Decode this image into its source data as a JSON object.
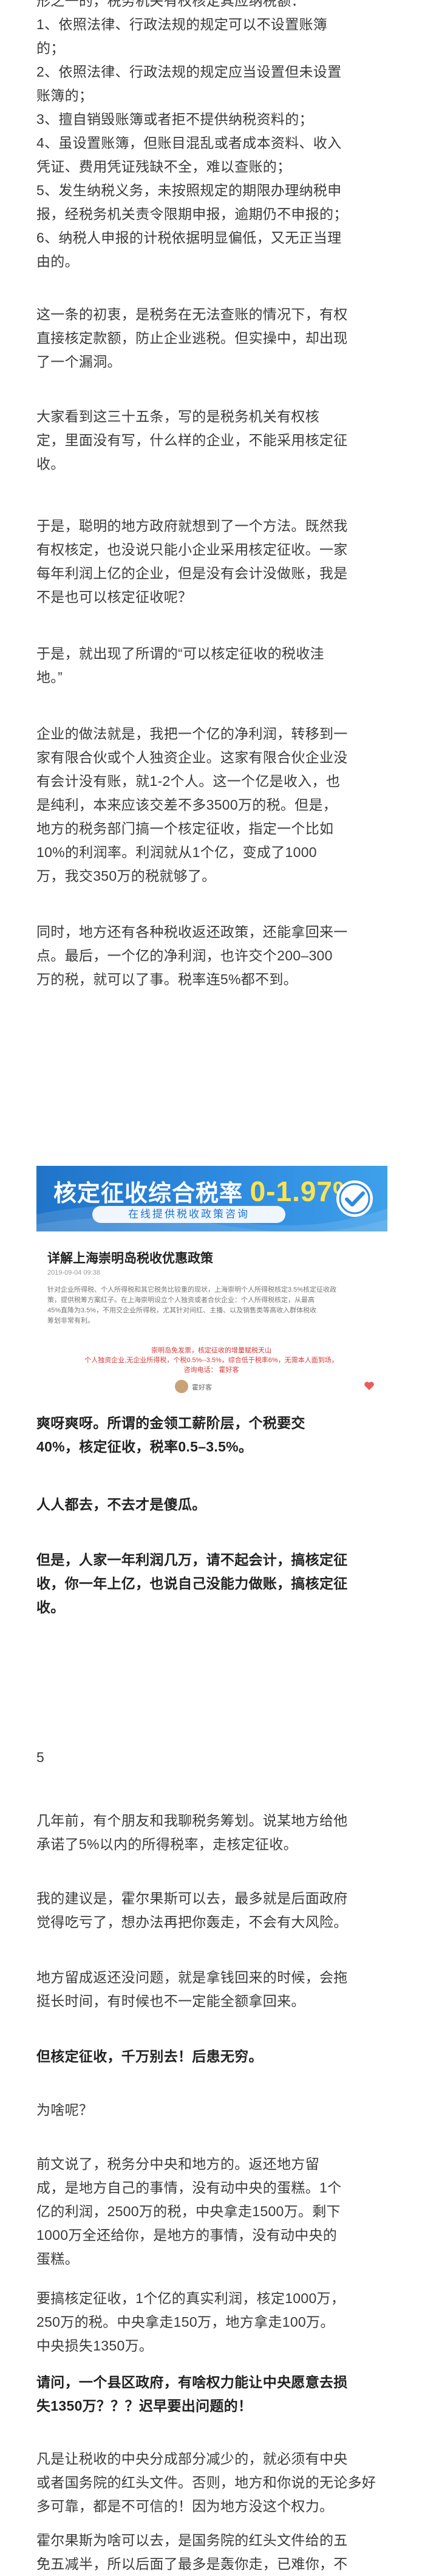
{
  "paragraphs": [
    {
      "id": "p-list",
      "bold": false,
      "lines": [
        "形之一的，税务机关有权核定其应纳税额：",
        "1、依照法律、行政法规的规定可以不设置账簿",
        "的；",
        "2、依照法律、行政法规的规定应当设置但未设置",
        "账簿的；",
        "3、擅自销毁账簿或者拒不提供纳税资料的；",
        "4、虽设置账簿，但账目混乱或者成本资料、收入",
        "凭证、费用凭证残缺不全，难以查账的；",
        "5、发生纳税义务，未按照规定的期限办理纳税申",
        "报，经税务机关责令限期申报，逾期仍不申报的；",
        "6、纳税人申报的计税依据明显偏低，又无正当理",
        "由的。"
      ]
    },
    {
      "id": "p-intent",
      "bold": false,
      "lines": [
        "这一条的初衷，是税务在无法查账的情况下，有权",
        "直接核定款额，防止企业逃税。但实操中，却出现",
        "了一个漏洞。"
      ]
    },
    {
      "id": "p-art35",
      "bold": false,
      "lines": [
        "大家看到这三十五条，写的是税务机关有权核",
        "定，里面没有写，什么样的企业，不能采用核定征",
        "收。"
      ]
    },
    {
      "id": "p-local",
      "bold": false,
      "lines": [
        "于是，聪明的地方政府就想到了一个方法。既然我",
        "有权核定，也没说只能小企业采用核定征收。一家",
        "每年利润上亿的企业，但是没有会计没做账，我是",
        "不是也可以核定征收呢？"
      ]
    },
    {
      "id": "p-haven",
      "bold": false,
      "lines": [
        "于是，就出现了所谓的“可以核定征收的税收洼",
        "地。”"
      ]
    },
    {
      "id": "p-practice",
      "bold": false,
      "lines": [
        "企业的做法就是，我把一个亿的净利润，转移到一",
        "家有限合伙或个人独资企业。这家有限合伙企业没",
        "有会计没有账，就1-2个人。这一个亿是收入，也",
        "是纯利，本来应该交差不多3500万的税。但是，",
        "地方的税务部门搞一个核定征收，指定一个比如",
        "10%的利润率。利润就从1个亿，变成了1000",
        "万，我交350万的税就够了。"
      ]
    },
    {
      "id": "p-rebate",
      "bold": false,
      "lines": [
        "同时，地方还有各种税收返还政策，还能拿回来一",
        "点。最后，一个亿的净利润，也许交个200–300",
        "万的税，就可以了事。税率连5%都不到。"
      ]
    },
    {
      "id": "p-shuang",
      "bold": true,
      "lines": [
        "爽呀爽呀。所谓的金领工薪阶层，个税要交",
        "40%，核定征收，税率0.5–3.5%。"
      ]
    },
    {
      "id": "p-everyone",
      "bold": true,
      "lines": [
        "人人都去，不去才是傻瓜。"
      ]
    },
    {
      "id": "p-but",
      "bold": true,
      "lines": [
        "但是，人家一年利润几万，请不起会计，搞核定征",
        "收，你一年上亿，也说自己没能力做账，搞核定征",
        "收。"
      ]
    },
    {
      "id": "p-friend",
      "bold": false,
      "lines": [
        "几年前，有个朋友和我聊税务筹划。说某地方给他",
        "承诺了5%以内的所得税率，走核定征收。"
      ]
    },
    {
      "id": "p-advice",
      "bold": false,
      "lines": [
        "我的建议是，霍尔果斯可以去，最多就是后面政府",
        "觉得吃亏了，想办法再把你轰走，不会有大风险。"
      ]
    },
    {
      "id": "p-return",
      "bold": false,
      "lines": [
        "地方留成返还没问题，就是拿钱回来的时候，会拖",
        "挺长时间，有时候也不一定能全额拿回来。"
      ]
    },
    {
      "id": "p-warn",
      "bold": true,
      "lines": [
        "但核定征收，千万别去！后患无穷。"
      ]
    },
    {
      "id": "p-why",
      "bold": false,
      "lines": [
        "为啥呢？"
      ]
    },
    {
      "id": "p-split",
      "bold": false,
      "lines": [
        "前文说了，税务分中央和地方的。返还地方留",
        "成，是地方自己的事情，没有动中央的蛋糕。1个",
        "亿的利润，2500万的税，中央拿走1500万。剩下",
        "1000万全还给你，是地方的事情，没有动中央的",
        "蛋糕。"
      ]
    },
    {
      "id": "p-calc",
      "bold": false,
      "lines": [
        "要搞核定征收，1个亿的真实利润，核定1000万，",
        "250万的税。中央拿走150万，地方拿走100万。",
        "中央损失1350万。"
      ]
    },
    {
      "id": "p-ask",
      "bold": true,
      "lines": [
        "请问，一个县区政府，有啥权力能让中央愿意去损",
        "失1350万？？？迟早要出问题的！"
      ]
    },
    {
      "id": "p-docs",
      "bold": false,
      "lines": [
        "凡是让税收的中央分成部分减少的，就必须有中央",
        "或者国务院的红头文件。否则，地方和你说的无论多好",
        "多可靠，都是不可信的！因为地方没这个权力。"
      ]
    },
    {
      "id": "p-khorgas",
      "bold": false,
      "lines": [
        "霍尔果斯为啥可以去，是国务院的红头文件给的五",
        "免五减半，所以后面了最多是轰你走，已难你，不"
      ]
    }
  ],
  "section_number": "5",
  "banner": {
    "title": "核定征收综合税率",
    "rate": "0-1.97%",
    "subtitle": "在线提供税收政策咨询"
  },
  "article": {
    "title": "详解上海崇明岛税收优惠政策",
    "meta": "2019-09-04  09:38",
    "body_lines": [
      "针对企业所得税、个人所得税和其它税务比较重的现状，上海崇明个人所得税核定3.5%核定征收政",
      "策，提供税筹方案红子。在上海崇明设立个人独资或者合伙企业：个人所得税核定，从最高",
      "45%直降为3.5%，不用交企业所得税，尤其针对间红、主播、以及销售类等高收入群体税收",
      "筹划非常有利。"
    ],
    "note_lines": [
      "崇明岛免发票，核定征收的增量赋税天山",
      "个人独资企业,无企业所得税，个税0.5%--3.5%，综合低于税率6%，无需本人面到场，",
      "咨询电话：            霍好客"
    ],
    "author": "霍好客"
  },
  "colors": {
    "banner_start": "#1f74c8",
    "banner_end": "#3ea0ea",
    "rate": "#ffe34d",
    "note": "#d23b3b"
  }
}
